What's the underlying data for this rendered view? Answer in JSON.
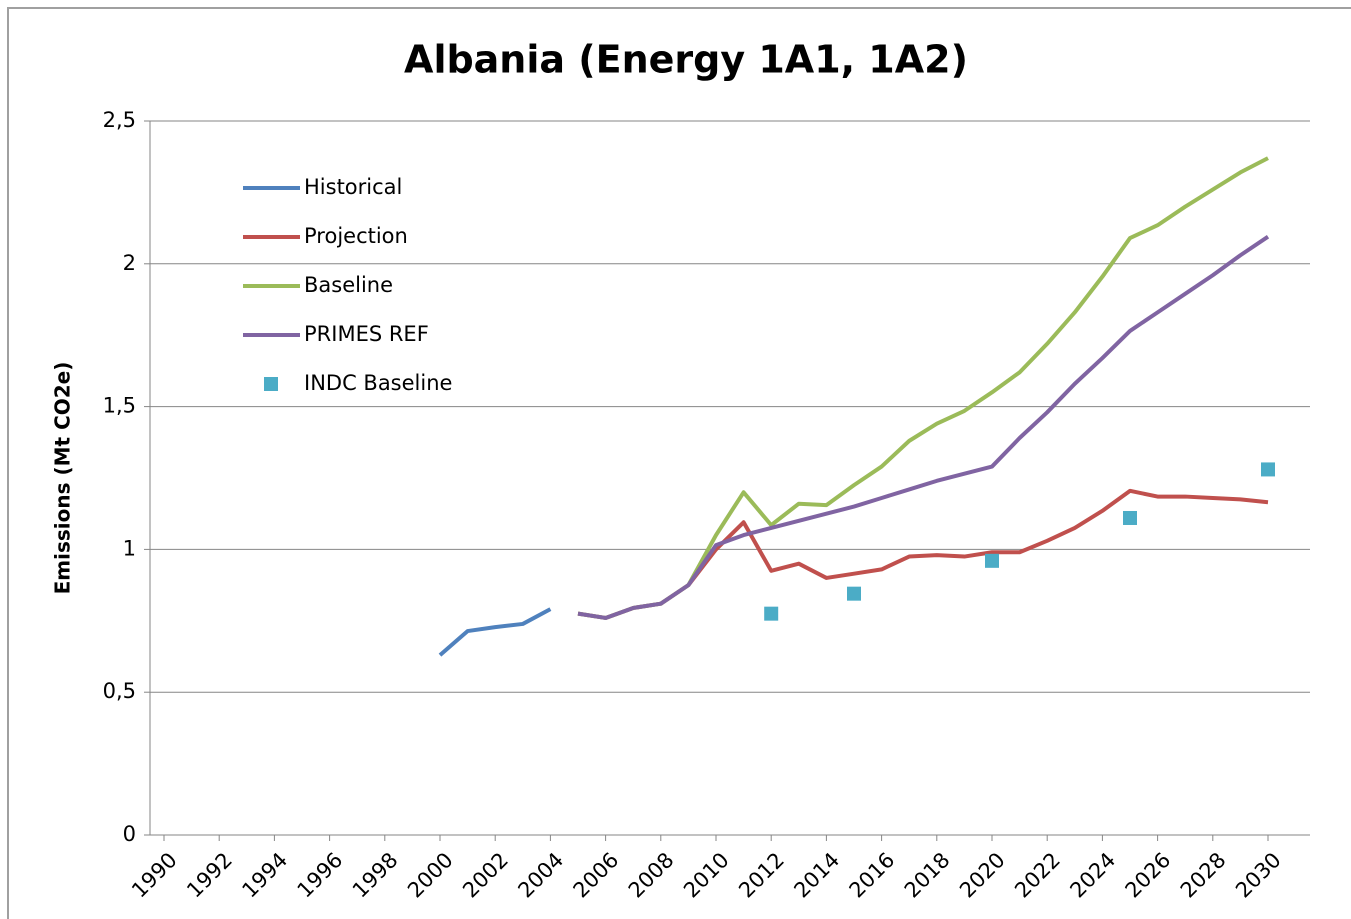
{
  "chart_data": {
    "type": "line",
    "title": "Albania (Energy 1A1, 1A2)",
    "y_label": "Emissions (Mt CO2e)",
    "xlim": [
      1990,
      2030
    ],
    "xticks": [
      1990,
      1992,
      1994,
      1996,
      1998,
      2000,
      2002,
      2004,
      2006,
      2008,
      2010,
      2012,
      2014,
      2016,
      2018,
      2020,
      2022,
      2024,
      2026,
      2028,
      2030
    ],
    "ylim": [
      0,
      2.5
    ],
    "yticks": [
      0,
      {
        "value": 0.5,
        "label": "0,5"
      },
      1,
      {
        "value": 1.5,
        "label": "1,5"
      },
      2,
      {
        "value": 2.5,
        "label": "2,5"
      }
    ],
    "grid": true,
    "legend": "upper left",
    "series": [
      {
        "name": "Historical",
        "color": "#4f81bd",
        "style": "line",
        "x": [
          2000,
          2001,
          2002,
          2003,
          2004
        ],
        "values": [
          0.63,
          0.714,
          0.728,
          0.739,
          0.791
        ]
      },
      {
        "name": "Projection",
        "color": "#c0504d",
        "style": "line",
        "x": [
          2005,
          2006,
          2007,
          2008,
          2009,
          2010,
          2011,
          2012,
          2013,
          2014,
          2015,
          2016,
          2017,
          2018,
          2019,
          2020,
          2021,
          2022,
          2023,
          2024,
          2025,
          2026,
          2027,
          2028,
          2029,
          2030
        ],
        "values": [
          0.775,
          0.76,
          0.795,
          0.81,
          0.875,
          1.0,
          1.095,
          0.925,
          0.95,
          0.9,
          0.915,
          0.93,
          0.975,
          0.98,
          0.975,
          0.99,
          0.99,
          1.03,
          1.075,
          1.135,
          1.205,
          1.185,
          1.185,
          1.18,
          1.175,
          1.165
        ]
      },
      {
        "name": "Baseline",
        "color": "#9bbb59",
        "style": "line",
        "x": [
          2005,
          2006,
          2007,
          2008,
          2009,
          2010,
          2011,
          2012,
          2013,
          2014,
          2015,
          2016,
          2017,
          2018,
          2019,
          2020,
          2021,
          2022,
          2023,
          2024,
          2025,
          2026,
          2027,
          2028,
          2029,
          2030
        ],
        "values": [
          0.775,
          0.76,
          0.795,
          0.81,
          0.875,
          1.05,
          1.2,
          1.085,
          1.16,
          1.155,
          1.225,
          1.29,
          1.38,
          1.44,
          1.485,
          1.55,
          1.62,
          1.72,
          1.83,
          1.955,
          2.09,
          2.135,
          2.2,
          2.26,
          2.32,
          2.37
        ]
      },
      {
        "name": "PRIMES REF",
        "color": "#8064a2",
        "style": "line",
        "x": [
          2005,
          2006,
          2007,
          2008,
          2009,
          2010,
          2011,
          2012,
          2013,
          2014,
          2015,
          2016,
          2017,
          2018,
          2019,
          2020,
          2021,
          2022,
          2023,
          2024,
          2025,
          2026,
          2027,
          2028,
          2029,
          2030
        ],
        "values": [
          0.775,
          0.76,
          0.795,
          0.81,
          0.875,
          1.015,
          1.05,
          1.075,
          1.1,
          1.125,
          1.15,
          1.18,
          1.21,
          1.24,
          1.265,
          1.29,
          1.39,
          1.48,
          1.58,
          1.67,
          1.765,
          1.83,
          1.895,
          1.96,
          2.03,
          2.095
        ]
      },
      {
        "name": "INDC Baseline",
        "color": "#4bacc6",
        "style": "marker",
        "x": [
          2012,
          2015,
          2020,
          2025,
          2030
        ],
        "values": [
          0.775,
          0.845,
          0.96,
          1.11,
          1.28
        ]
      }
    ]
  }
}
